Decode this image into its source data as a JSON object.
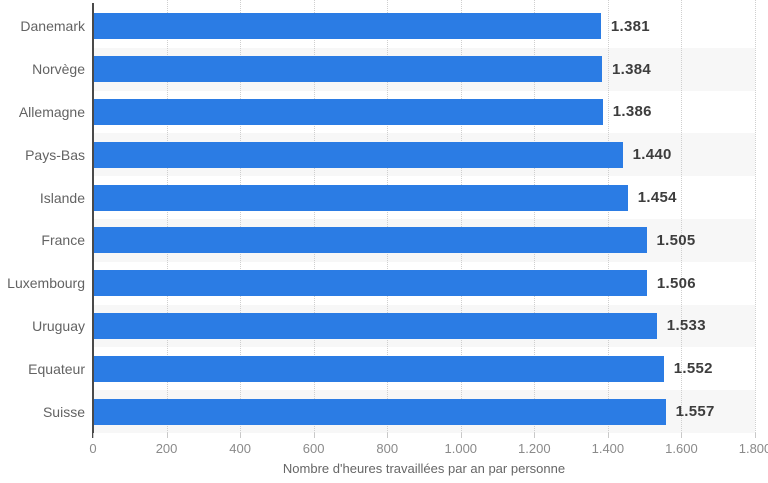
{
  "chart_data": {
    "type": "bar",
    "orientation": "horizontal",
    "categories": [
      "Danemark",
      "Norvège",
      "Allemagne",
      "Pays-Bas",
      "Islande",
      "France",
      "Luxembourg",
      "Uruguay",
      "Equateur",
      "Suisse"
    ],
    "values": [
      1381,
      1384,
      1386,
      1440,
      1454,
      1505,
      1506,
      1533,
      1552,
      1557
    ],
    "value_labels": [
      "1.381",
      "1.384",
      "1.386",
      "1.440",
      "1.454",
      "1.505",
      "1.506",
      "1.533",
      "1.552",
      "1.557"
    ],
    "title": "",
    "xlabel": "Nombre d'heures travaillées par an par personne",
    "ylabel": "",
    "xlim": [
      0,
      1800
    ],
    "x_ticks": [
      0,
      200,
      400,
      600,
      800,
      1000,
      1200,
      1400,
      1600,
      1800
    ],
    "x_tick_labels": [
      "0",
      "200",
      "400",
      "600",
      "800",
      "1.000",
      "1.200",
      "1.400",
      "1.600",
      "1.800"
    ],
    "grid": "vertical-dotted",
    "legend": "none",
    "row_striping": "alternate even rows shaded",
    "colors": {
      "bar": "#2b7ce4",
      "stripe": "#f7f7f7",
      "axis_line": "#4a4a4a",
      "grid_line": "#cfcfcf",
      "category_label": "#636363",
      "value_label": "#3d3d3d",
      "tick_label": "#8a8a8a",
      "axis_title": "#666666"
    }
  }
}
